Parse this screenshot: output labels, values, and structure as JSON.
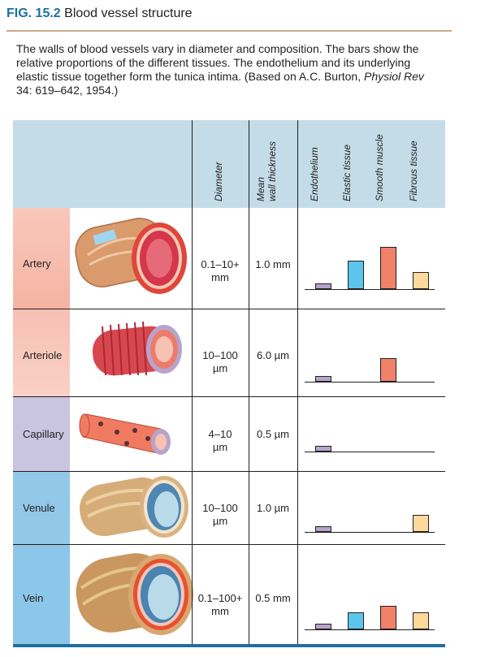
{
  "figure": {
    "label": "FIG. 15.2",
    "title": "Blood vessel structure",
    "caption_part1": "The walls of blood vessels vary in diameter and composition. The bars show the relative proportions of the different tissues. The endothelium and its underlying elastic tissue together form the tunica intima. (Based on A.C. Burton, ",
    "caption_journal": "Physiol Rev",
    "caption_part2": " 34: 619–642, 1954.)"
  },
  "table": {
    "headers": {
      "diameter": "Diameter",
      "wall_line1": "Mean",
      "wall_line2": "wall thickness",
      "endothelium": "Endothelium",
      "elastic": "Elastic tissue",
      "smooth": "Smooth muscle",
      "fibrous": "Fibrous tissue"
    },
    "rows": [
      {
        "name": "Artery",
        "diameter_line1": "0.1–10+",
        "diameter_line2": "mm",
        "wall": "1.0 mm"
      },
      {
        "name": "Arteriole",
        "diameter_line1": "10–100",
        "diameter_line2": "µm",
        "wall": "6.0 µm"
      },
      {
        "name": "Capillary",
        "diameter_line1": "4–10",
        "diameter_line2": "µm",
        "wall": "0.5 µm"
      },
      {
        "name": "Venule",
        "diameter_line1": "10–100",
        "diameter_line2": "µm",
        "wall": "1.0 µm"
      },
      {
        "name": "Vein",
        "diameter_line1": "0.1–100+",
        "diameter_line2": "mm",
        "wall": "0.5 mm"
      }
    ]
  },
  "tissue_proportions": {
    "tissues": [
      "Endothelium",
      "Elastic tissue",
      "Smooth muscle",
      "Fibrous tissue"
    ],
    "colors": {
      "endothelium": "#b7a4cc",
      "elastic": "#5bc5ee",
      "smooth": "#f0826a",
      "fibrous": "#fdd99b"
    },
    "relative_levels": {
      "Artery": [
        0.13,
        0.68,
        1.0,
        0.4
      ],
      "Arteriole": [
        0.13,
        0,
        0.55,
        0
      ],
      "Capillary": [
        0.13,
        0,
        0,
        0
      ],
      "Venule": [
        0.13,
        0,
        0,
        0.4
      ],
      "Vein": [
        0.13,
        0.4,
        0.55,
        0.4
      ]
    }
  },
  "row_colors": [
    "#f6b8a8",
    "#f9ccc0",
    "#c7c3df",
    "#8fc8e8",
    "#8fc8e8"
  ]
}
